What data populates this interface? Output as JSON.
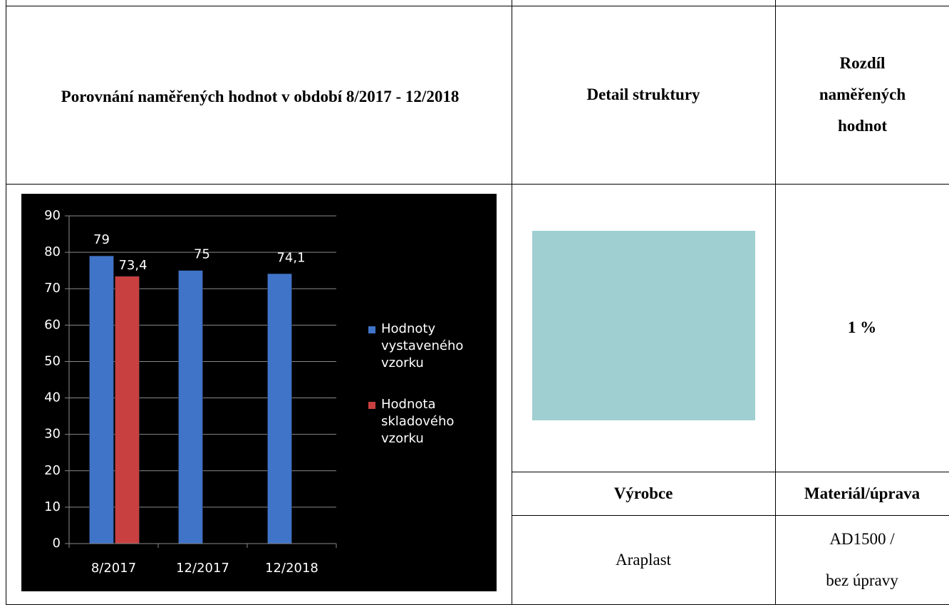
{
  "table": {
    "header": [
      "Porovnání naměřených hodnot v období 8/2017 - 12/2018",
      "Detail struktury",
      "Rozdíl naměřených hodnot"
    ],
    "difference": "1 %",
    "subheader": [
      "Výrobce",
      "Materiál/úprava"
    ],
    "row": [
      "Araplast",
      [
        "AD1500 /",
        "bez úpravy"
      ]
    ]
  },
  "chart_data": {
    "type": "bar",
    "categories": [
      "8/2017",
      "12/2017",
      "12/2018"
    ],
    "series": [
      {
        "name": "Hodnoty vystaveného vzorku",
        "color": "#3f74c8",
        "values": [
          79,
          75,
          74.1
        ],
        "value_labels": [
          "79",
          "75",
          "74,1"
        ]
      },
      {
        "name": "Hodnota skladového vzorku",
        "color": "#c94040",
        "values": [
          73.4,
          null,
          null
        ],
        "value_labels": [
          "73,4",
          null,
          null
        ]
      }
    ],
    "ylim": [
      0,
      90
    ],
    "yticks": [
      0,
      10,
      20,
      30,
      40,
      50,
      60,
      70,
      80,
      90
    ],
    "grid": true,
    "legend": "right"
  }
}
